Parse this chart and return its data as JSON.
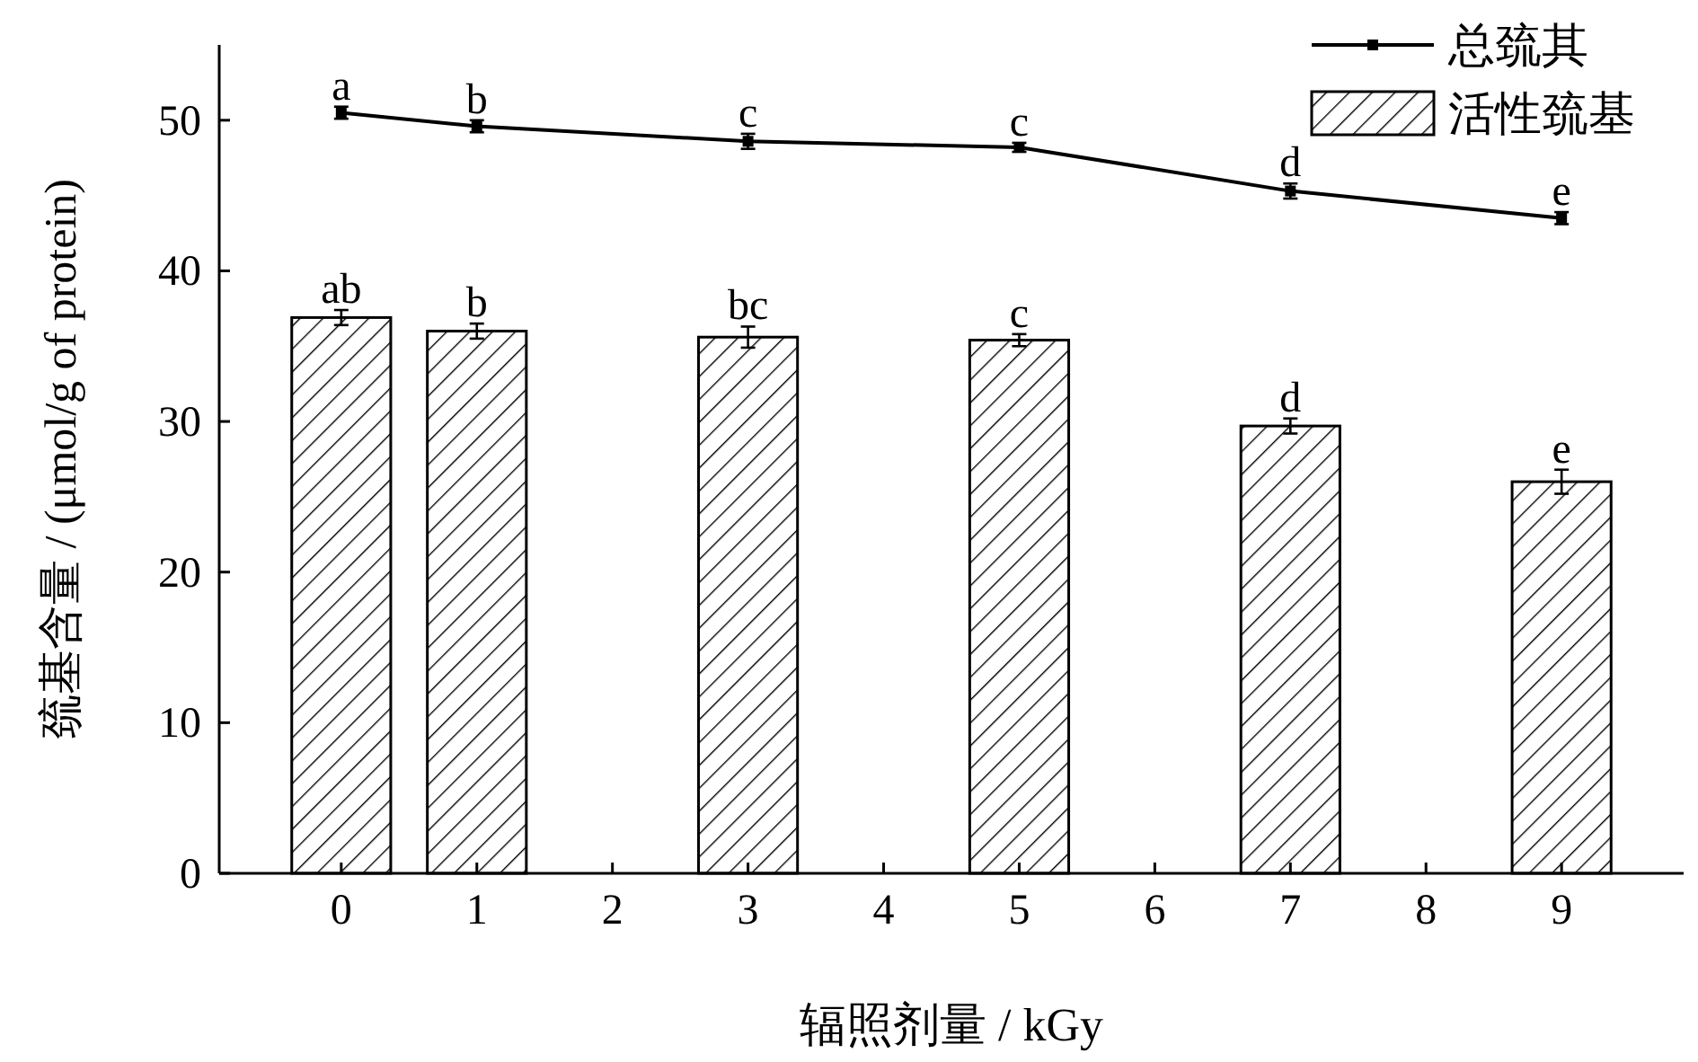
{
  "chart_data": {
    "type": "bar",
    "xlabel": "辐照剂量 / kGy",
    "ylabel": "巯基含量 / (μmol/g of protein)",
    "xlim": [
      -0.9,
      9.9
    ],
    "xticks": [
      0,
      1,
      2,
      3,
      4,
      5,
      6,
      7,
      8,
      9
    ],
    "ylim": [
      0,
      55
    ],
    "yticks": [
      0,
      10,
      20,
      30,
      40,
      50
    ],
    "x": [
      0,
      1,
      3,
      5,
      7,
      9
    ],
    "legend": "top right",
    "marker": "square",
    "line_style": "solid",
    "grid": false,
    "series": [
      {
        "name": "总巯其",
        "type": "line",
        "color": "#000000",
        "values": [
          50.5,
          49.6,
          48.6,
          48.2,
          45.3,
          43.5
        ],
        "errors": [
          0.4,
          0.4,
          0.5,
          0.3,
          0.5,
          0.4
        ]
      },
      {
        "name": "活性巯基",
        "color": "#000000",
        "values": [
          36.9,
          36.0,
          35.6,
          35.4,
          29.7,
          26.0
        ],
        "errors": [
          0.5,
          0.5,
          0.7,
          0.4,
          0.5,
          0.8
        ]
      }
    ],
    "annotations": [
      {
        "text": "a",
        "x": 0,
        "y": 50.9
      },
      {
        "text": "b",
        "x": 1,
        "y": 50.0
      },
      {
        "text": "c",
        "x": 3,
        "y": 49.1
      },
      {
        "text": "c",
        "x": 5,
        "y": 48.5
      },
      {
        "text": "d",
        "x": 7,
        "y": 45.8
      },
      {
        "text": "e",
        "x": 9,
        "y": 43.9
      },
      {
        "text": "ab",
        "x": 0,
        "y": 37.4
      },
      {
        "text": "b",
        "x": 1,
        "y": 36.5
      },
      {
        "text": "bc",
        "x": 3,
        "y": 36.3
      },
      {
        "text": "c",
        "x": 5,
        "y": 35.8
      },
      {
        "text": "d",
        "x": 7,
        "y": 30.2
      },
      {
        "text": "e",
        "x": 9,
        "y": 26.8
      }
    ]
  }
}
